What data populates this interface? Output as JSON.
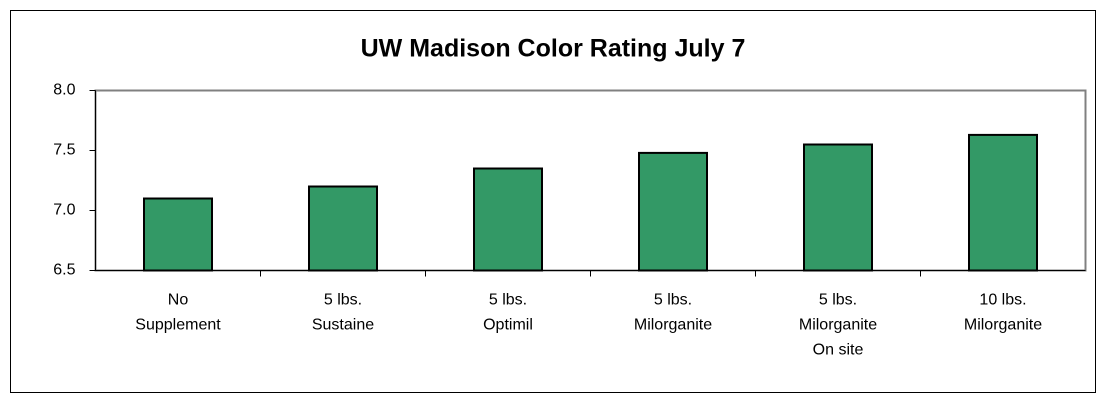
{
  "chart_data": {
    "type": "bar",
    "title": "UW Madison Color Rating July 7",
    "categories": [
      "No\nSupplement",
      "5 lbs.\nSustaine",
      "5 lbs.\nOptimil",
      "5 lbs.\nMilorganite",
      "5 lbs.\nMilorganite\nOn site",
      "10 lbs.\nMilorganite"
    ],
    "values": [
      7.1,
      7.2,
      7.35,
      7.48,
      7.55,
      7.63
    ],
    "color": "#339966",
    "ylim": [
      6.5,
      8.0
    ],
    "yticks": [
      {
        "value": 6.5,
        "label": "6.5"
      },
      {
        "value": 7.0,
        "label": "7.0"
      },
      {
        "value": 7.5,
        "label": "7.5"
      },
      {
        "value": 8.0,
        "label": "8.0"
      }
    ],
    "grid": false
  }
}
